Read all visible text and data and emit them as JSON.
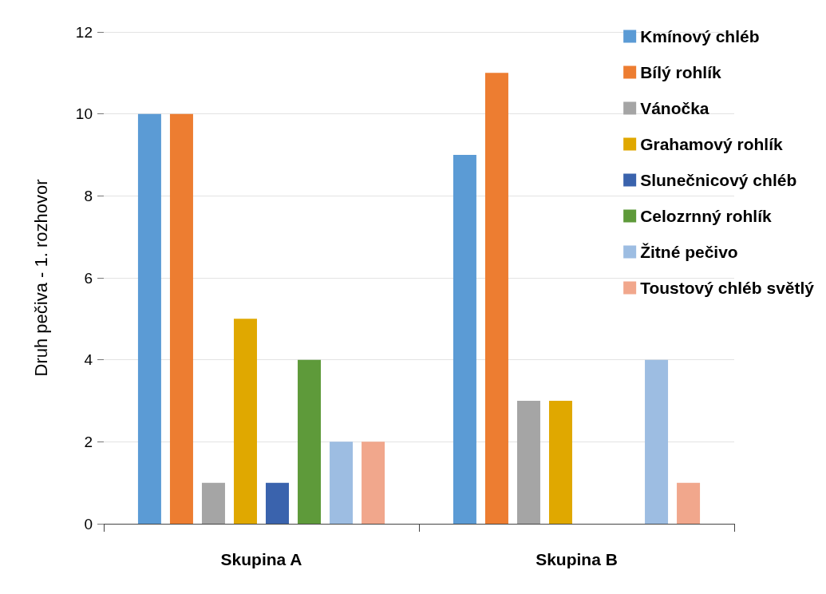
{
  "chart_data": {
    "type": "bar",
    "ylabel": "Druh pečiva - 1. rozhovor",
    "categories": [
      "Skupina A",
      "Skupina B"
    ],
    "series": [
      {
        "name": "Kmínový chléb",
        "color": "#5b9bd5",
        "values": [
          10,
          9
        ]
      },
      {
        "name": "Bílý rohlík",
        "color": "#ed7d31",
        "values": [
          10,
          11
        ]
      },
      {
        "name": "Vánočka",
        "color": "#a5a5a5",
        "values": [
          1,
          3
        ]
      },
      {
        "name": "Grahamový rohlík",
        "color": "#e0a800",
        "values": [
          5,
          3
        ]
      },
      {
        "name": "Slunečnicový chléb",
        "color": "#3a63ad",
        "values": [
          1,
          0
        ]
      },
      {
        "name": "Celozrnný rohlík",
        "color": "#5e9a3a",
        "values": [
          4,
          0
        ]
      },
      {
        "name": "Žitné pečivo",
        "color": "#9dbde2",
        "values": [
          2,
          4
        ]
      },
      {
        "name": "Toustový chléb světlý",
        "color": "#f1a78c",
        "values": [
          2,
          1
        ]
      }
    ],
    "ylim": [
      0,
      12
    ],
    "yticks": [
      0,
      2,
      4,
      6,
      8,
      10,
      12
    ],
    "grid": "y",
    "legend": "right"
  }
}
